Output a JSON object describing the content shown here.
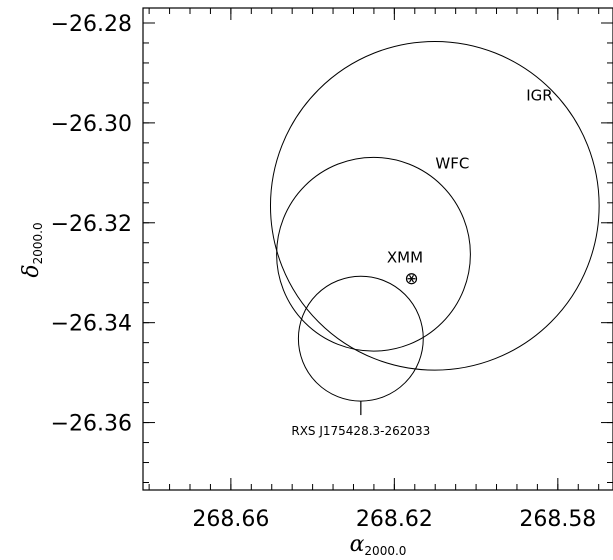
{
  "chart_data": {
    "type": "scatter",
    "title": "",
    "xlabel": {
      "symbol": "α",
      "subscript": "2000.0"
    },
    "ylabel": {
      "symbol": "δ",
      "subscript": "2000.0"
    },
    "x_reversed": true,
    "xlim": [
      268.6815,
      268.5665
    ],
    "ylim": [
      -26.3735,
      -26.277
    ],
    "x_ticks": [
      268.66,
      268.62,
      268.58
    ],
    "x_tick_labels": [
      "268.66",
      "268.62",
      "268.58"
    ],
    "y_ticks": [
      -26.28,
      -26.3,
      -26.32,
      -26.34,
      -26.36
    ],
    "y_tick_labels": [
      "−26.28",
      "−26.30",
      "−26.32",
      "−26.34",
      "−26.36"
    ],
    "x_minor_step": 0.005,
    "y_minor_step": 0.004,
    "grid": false,
    "circles": [
      {
        "label": "IGR",
        "ra": 268.6101,
        "dec": -26.3166,
        "radius_dec": 0.0329
      },
      {
        "label": "WFC",
        "ra": 268.6251,
        "dec": -26.3263,
        "radius_dec": 0.0194
      },
      {
        "label": "",
        "ra": 268.6282,
        "dec": -26.3432,
        "radius_dec": 0.0125
      }
    ],
    "points": [
      {
        "label": "XMM",
        "ra": 268.6158,
        "dec": -26.3312,
        "marker": "asterisk-in-circle"
      }
    ],
    "annotations": [
      {
        "text": "IGR",
        "ra": 268.5845,
        "dec": -26.2955
      },
      {
        "text": "WFC",
        "ra": 268.6058,
        "dec": -26.3091
      },
      {
        "text": "XMM",
        "ra": 268.6174,
        "dec": -26.328
      },
      {
        "text": "RXS J175428.3-262033",
        "ra": 268.6282,
        "dec": -26.3625
      }
    ],
    "source_marker": {
      "ra": 268.6282,
      "dec_from": -26.3557,
      "dec_to": -26.3585
    }
  }
}
